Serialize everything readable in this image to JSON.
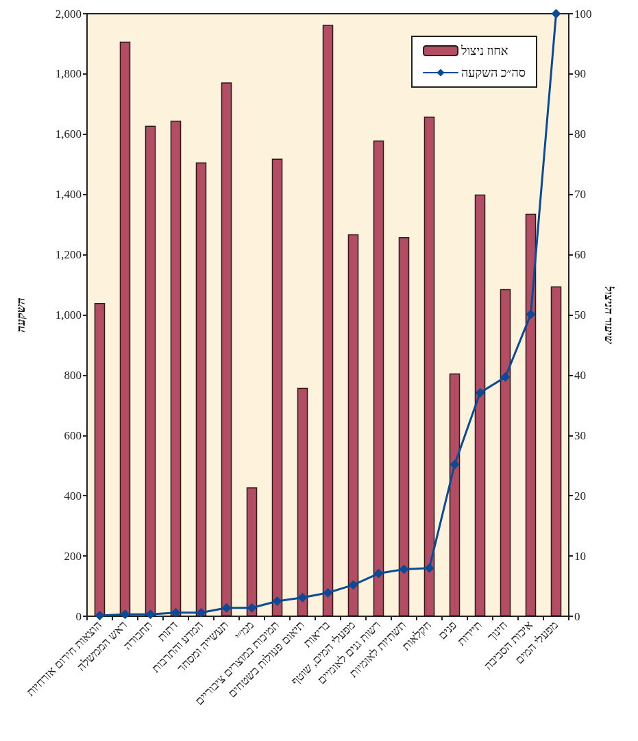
{
  "chart_data": {
    "type": "bar",
    "ylabel": "השקעה",
    "y2label": "שיעור הניצול",
    "categories": [
      "הוצאות חירום אזרחיות",
      "ראש הממשלה",
      "תחבורה",
      "דתות",
      "המדע והתרבות",
      "תעשייה ומסחר",
      "ממ״י",
      "תמיכות במוצרים ציבוריים",
      "תיאום פעולות בשטחים",
      "בריאות",
      "מפעלי המים, שוטף",
      "רשות גנים לאומיים",
      "תשתיות לאומיות",
      "חקלאות",
      "פנים",
      "תיירות",
      "חינוך",
      "איכות הסביבה",
      "מפעלי המים"
    ],
    "series": [
      {
        "name": "אחוז ניצול",
        "color": "#b24d63",
        "values": [
          1040,
          1907,
          1628,
          1645,
          1506,
          1772,
          428,
          1519,
          758,
          1963,
          1268,
          1579,
          1258,
          1658,
          806,
          1400,
          1086,
          1336,
          1095
        ]
      },
      {
        "name": "סה״כ השקעה",
        "type": "line",
        "axis": "y2",
        "color": "#0a4a96",
        "marker": "diamond",
        "line_style": "solid",
        "values": [
          0.1,
          0.3,
          0.3,
          0.6,
          0.6,
          1.4,
          1.4,
          2.5,
          3.1,
          3.9,
          5.2,
          7.1,
          7.8,
          8.0,
          25.2,
          37.1,
          39.7,
          50.1,
          100
        ]
      }
    ],
    "ylim": [
      0,
      2000
    ],
    "yticks": [
      0,
      200,
      400,
      600,
      800,
      {
        "value": 1000,
        "label": "1,000"
      },
      {
        "value": 1200,
        "label": "1,200"
      },
      {
        "value": 1400,
        "label": "1,400"
      },
      {
        "value": 1600,
        "label": "1,600"
      },
      {
        "value": 1800,
        "label": "1,800"
      },
      {
        "value": 2000,
        "label": "2,000"
      }
    ],
    "y2lim": [
      0,
      100
    ],
    "y2ticks": [
      0,
      10,
      20,
      30,
      40,
      50,
      60,
      70,
      80,
      90,
      100
    ],
    "grid": false,
    "legend": "top right"
  }
}
